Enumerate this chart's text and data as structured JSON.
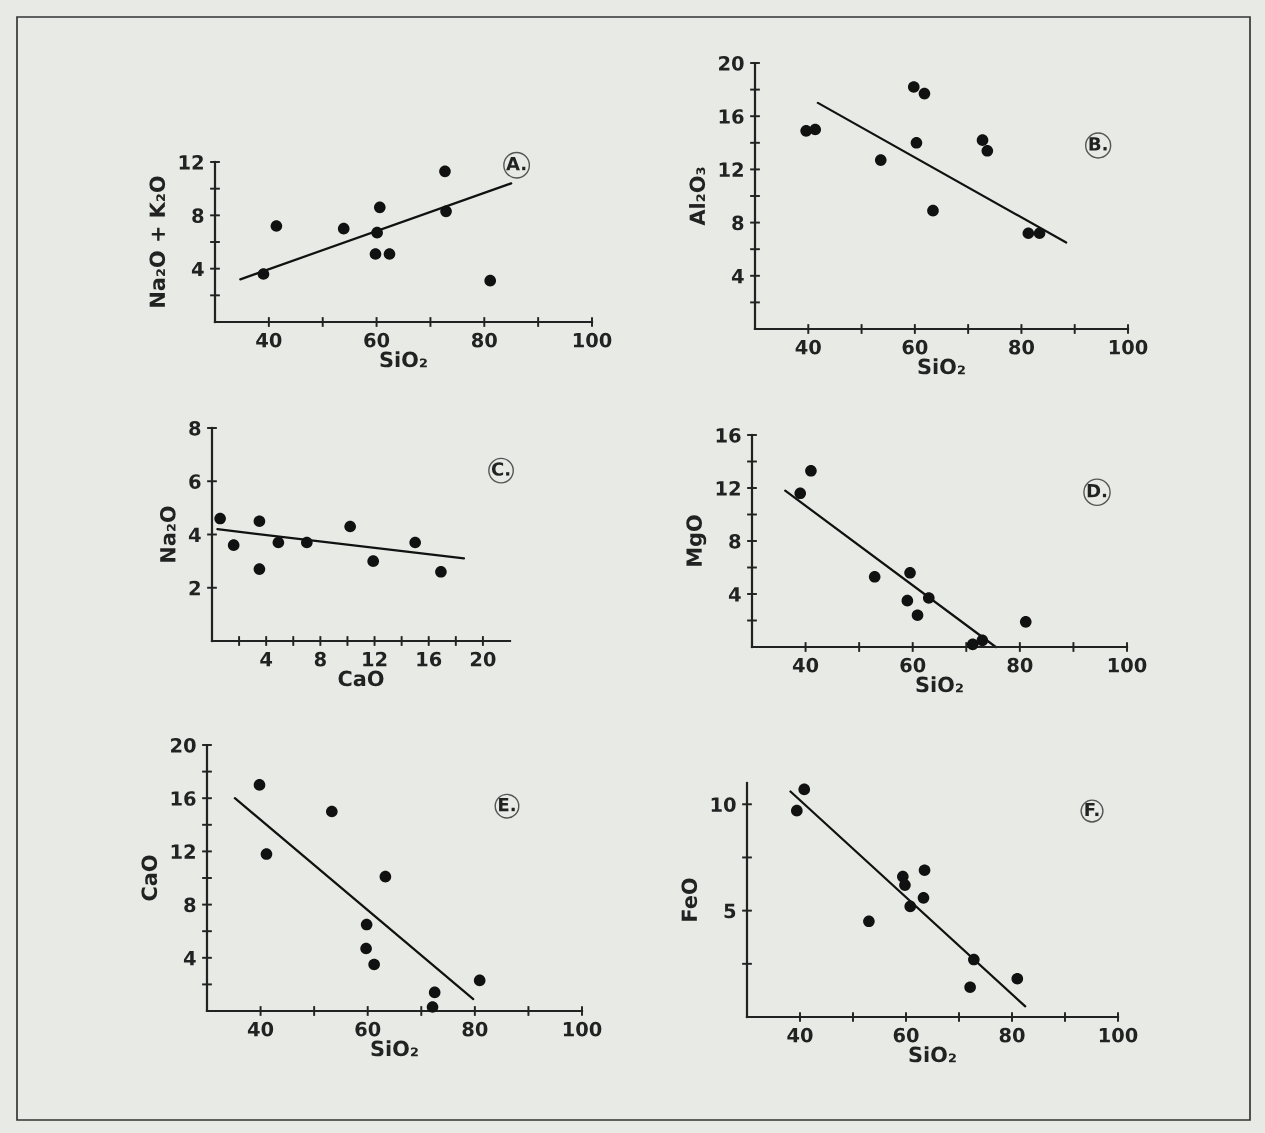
{
  "chart_data": [
    {
      "type": "scatter",
      "xlabel": "SiO₂",
      "ylabel": "Na₂O + K₂O",
      "annotations": [
        "A."
      ],
      "xlim": [
        30,
        100
      ],
      "ylim": [
        0,
        12
      ],
      "xticks": [
        40,
        {
          "value": 50,
          "label": null
        },
        60,
        {
          "value": 70,
          "label": null
        },
        80,
        {
          "value": 90,
          "label": null
        },
        100
      ],
      "yticks": [
        {
          "value": 2,
          "label": null
        },
        4,
        {
          "value": 6,
          "label": null
        },
        8,
        {
          "value": 10,
          "label": null
        },
        12
      ],
      "series": [
        {
          "color": "#111111",
          "marker": "circle",
          "x": [
            39.0,
            41.4,
            53.9,
            60.6,
            60.1,
            59.8,
            62.4,
            72.7,
            72.9,
            81.1
          ],
          "values": [
            3.6,
            7.2,
            7.0,
            8.6,
            6.7,
            5.1,
            5.1,
            11.3,
            8.3,
            3.1
          ]
        },
        {
          "type": "line",
          "color": "#111111",
          "x": [
            34.7,
            85.0
          ],
          "values": [
            3.2,
            10.4
          ]
        }
      ]
    },
    {
      "type": "scatter",
      "xlabel": "SiO₂",
      "ylabel": "Al₂O₃",
      "annotations": [
        "B."
      ],
      "xlim": [
        30,
        100
      ],
      "ylim": [
        0,
        20
      ],
      "xticks": [
        40,
        {
          "value": 50,
          "label": null
        },
        60,
        {
          "value": 70,
          "label": null
        },
        80,
        {
          "value": 90,
          "label": null
        },
        100
      ],
      "yticks": [
        {
          "value": 2,
          "label": null
        },
        4,
        {
          "value": 6,
          "label": null
        },
        8,
        {
          "value": 10,
          "label": null
        },
        12,
        {
          "value": 14,
          "label": null
        },
        16,
        {
          "value": 18,
          "label": null
        },
        20
      ],
      "series": [
        {
          "color": "#111111",
          "marker": "circle",
          "x": [
            39.6,
            41.3,
            53.6,
            59.8,
            61.8,
            60.3,
            63.4,
            72.7,
            73.6,
            81.3,
            83.4
          ],
          "values": [
            14.9,
            15.0,
            12.7,
            18.2,
            17.7,
            14.0,
            8.9,
            14.2,
            13.4,
            7.2,
            7.2
          ]
        },
        {
          "type": "line",
          "color": "#111111",
          "x": [
            41.8,
            88.4
          ],
          "values": [
            17.0,
            6.5
          ]
        }
      ]
    },
    {
      "type": "scatter",
      "xlabel": "CaO",
      "ylabel": "Na₂O",
      "annotations": [
        "C."
      ],
      "xlim": [
        0,
        22
      ],
      "ylim": [
        0,
        8
      ],
      "xticks": [
        {
          "value": 2,
          "label": null
        },
        4,
        {
          "value": 6,
          "label": null
        },
        8,
        {
          "value": 10,
          "label": null
        },
        12,
        {
          "value": 14,
          "label": null
        },
        16,
        {
          "value": 18,
          "label": null
        },
        20
      ],
      "yticks": [
        2,
        4,
        6,
        8
      ],
      "series": [
        {
          "color": "#111111",
          "marker": "circle",
          "x": [
            0.6,
            1.6,
            3.5,
            3.5,
            4.9,
            7.0,
            10.2,
            11.9,
            15.0,
            16.9
          ],
          "values": [
            4.6,
            3.6,
            4.5,
            2.7,
            3.7,
            3.7,
            4.3,
            3.0,
            3.7,
            2.6
          ]
        },
        {
          "type": "line",
          "color": "#111111",
          "x": [
            0.4,
            18.6
          ],
          "values": [
            4.2,
            3.1
          ]
        }
      ]
    },
    {
      "type": "scatter",
      "xlabel": "SiO₂",
      "ylabel": "MgO",
      "annotations": [
        "D."
      ],
      "xlim": [
        30,
        100
      ],
      "ylim": [
        0,
        16
      ],
      "xticks": [
        40,
        {
          "value": 50,
          "label": null
        },
        60,
        {
          "value": 70,
          "label": null
        },
        80,
        {
          "value": 90,
          "label": null
        },
        100
      ],
      "yticks": [
        {
          "value": 2,
          "label": null
        },
        4,
        {
          "value": 6,
          "label": null
        },
        8,
        {
          "value": 10,
          "label": null
        },
        12,
        {
          "value": 14,
          "label": null
        },
        16
      ],
      "series": [
        {
          "color": "#111111",
          "marker": "circle",
          "x": [
            39.0,
            41.0,
            52.9,
            59.5,
            59.0,
            63.0,
            60.9,
            71.2,
            73.0,
            81.1
          ],
          "values": [
            11.6,
            13.3,
            5.3,
            5.6,
            3.5,
            3.7,
            2.4,
            0.2,
            0.5,
            1.9
          ]
        },
        {
          "type": "line",
          "color": "#111111",
          "x": [
            36.2,
            75.5
          ],
          "values": [
            11.8,
            0
          ]
        }
      ]
    },
    {
      "type": "scatter",
      "xlabel": "SiO₂",
      "ylabel": "CaO",
      "annotations": [
        "E."
      ],
      "xlim": [
        30,
        100
      ],
      "ylim": [
        0,
        20
      ],
      "xticks": [
        40,
        {
          "value": 50,
          "label": null
        },
        60,
        {
          "value": 70,
          "label": null
        },
        80,
        {
          "value": 90,
          "label": null
        },
        100
      ],
      "yticks": [
        {
          "value": 2,
          "label": null
        },
        4,
        {
          "value": 6,
          "label": null
        },
        8,
        {
          "value": 10,
          "label": null
        },
        12,
        {
          "value": 14,
          "label": null
        },
        16,
        {
          "value": 18,
          "label": null
        },
        20
      ],
      "series": [
        {
          "color": "#111111",
          "marker": "circle",
          "x": [
            39.8,
            41.1,
            53.3,
            63.3,
            59.8,
            59.7,
            61.2,
            72.5,
            72.1,
            80.9
          ],
          "values": [
            17.0,
            11.8,
            15.0,
            10.1,
            6.5,
            4.7,
            3.5,
            1.4,
            0.3,
            2.3
          ]
        },
        {
          "type": "line",
          "color": "#111111",
          "x": [
            35.2,
            79.7
          ],
          "values": [
            16.0,
            0.9
          ]
        }
      ]
    },
    {
      "type": "scatter",
      "xlabel": "SiO₂",
      "ylabel": "FeO",
      "annotations": [
        "F."
      ],
      "xlim": [
        30,
        100
      ],
      "ylim": [
        0,
        11
      ],
      "xticks": [
        40,
        {
          "value": 50,
          "label": null
        },
        60,
        {
          "value": 70,
          "label": null
        },
        80,
        {
          "value": 90,
          "label": null
        },
        100
      ],
      "yticks": [
        {
          "value": 2.5,
          "label": null
        },
        5,
        {
          "value": 7.5,
          "label": null
        },
        10
      ],
      "series": [
        {
          "color": "#111111",
          "marker": "circle",
          "x": [
            39.4,
            40.8,
            53.0,
            59.4,
            59.8,
            60.8,
            63.5,
            63.3,
            72.8,
            72.1,
            81.0
          ],
          "values": [
            9.7,
            10.7,
            4.5,
            6.6,
            6.2,
            5.2,
            6.9,
            5.6,
            2.7,
            1.4,
            1.8
          ]
        },
        {
          "type": "line",
          "color": "#111111",
          "x": [
            38.2,
            82.5
          ],
          "values": [
            10.6,
            0.5
          ]
        }
      ]
    }
  ]
}
